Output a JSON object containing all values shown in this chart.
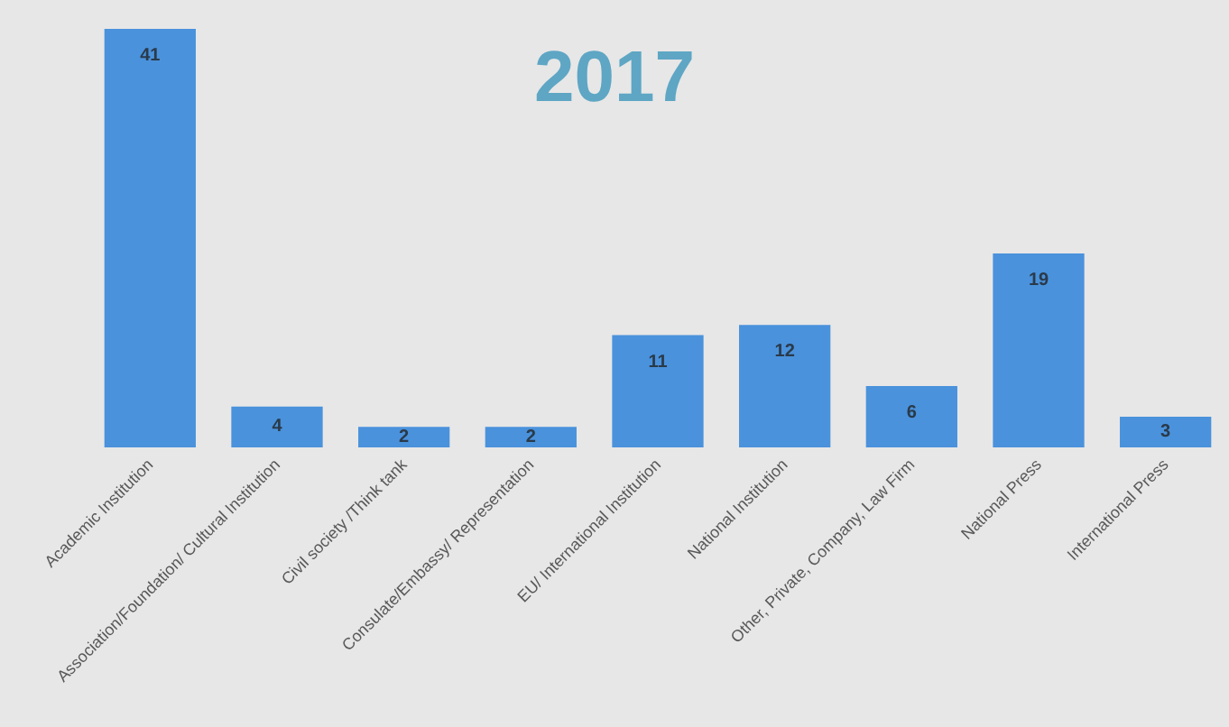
{
  "chart_data": {
    "type": "bar",
    "title": "2017",
    "categories": [
      "Academic Institution",
      "Association/Foundation/ Cultural Institution",
      "Civil society /Think tank",
      "Consulate/Embassy/ Representation",
      "EU/ International Institution",
      "National Institution",
      "Other, Private, Company, Law Firm",
      "National Press",
      "International Press"
    ],
    "values": [
      41,
      4,
      2,
      2,
      11,
      12,
      6,
      19,
      3
    ],
    "color": "#4a92dc",
    "data_labels": true
  }
}
